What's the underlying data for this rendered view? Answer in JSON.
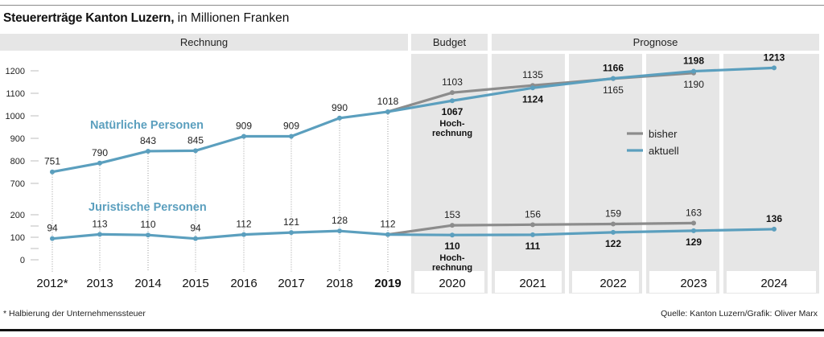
{
  "header": {
    "title_bold": "Steuererträge Kanton Luzern,",
    "title_rest": " in Millionen Franken"
  },
  "footer": {
    "footnote": "* Halbierung der Unternehmenssteuer",
    "source": "Quelle: Kanton Luzern/Grafik: Oliver Marx"
  },
  "colors": {
    "aktuell": "#5b9fbe",
    "bisher": "#8c8c8c",
    "panel": "#e6e6e6"
  },
  "chart_data": {
    "type": "line",
    "title": "Steuererträge Kanton Luzern, in Millionen Franken",
    "sections": [
      {
        "label": "Rechnung",
        "years": [
          "2012*",
          "2013",
          "2014",
          "2015",
          "2016",
          "2017",
          "2018",
          "2019"
        ]
      },
      {
        "label": "Budget",
        "years": [
          "2020"
        ]
      },
      {
        "label": "Prognose",
        "years": [
          "2021",
          "2022",
          "2023",
          "2024"
        ]
      }
    ],
    "categories": [
      "2012*",
      "2013",
      "2014",
      "2015",
      "2016",
      "2017",
      "2018",
      "2019",
      "2020",
      "2021",
      "2022",
      "2023",
      "2024"
    ],
    "bold_category": "2019",
    "legend": [
      {
        "name": "bisher",
        "color": "#8c8c8c"
      },
      {
        "name": "aktuell",
        "color": "#5b9fbe"
      }
    ],
    "legend_position": "right",
    "panels": [
      {
        "name": "Natürliche Personen",
        "yticks": [
          700,
          800,
          900,
          1000,
          1100,
          1200
        ],
        "ylim": [
          700,
          1200
        ],
        "series": [
          {
            "name": "aktuell",
            "values": [
              751,
              790,
              843,
              845,
              909,
              909,
              990,
              1018,
              1067,
              1124,
              1166,
              1198,
              1213
            ]
          },
          {
            "name": "bisher",
            "values": [
              null,
              null,
              null,
              null,
              null,
              null,
              null,
              1018,
              1103,
              1135,
              1165,
              1190,
              null
            ]
          }
        ],
        "annotations": [
          {
            "category": "2020",
            "text": [
              "Hoch-",
              "rechnung"
            ]
          }
        ]
      },
      {
        "name": "Juristische Personen",
        "yticks": [
          0,
          100,
          200
        ],
        "minor_yticks": [
          50,
          150
        ],
        "ylim": [
          0,
          200
        ],
        "series": [
          {
            "name": "aktuell",
            "values": [
              94,
              113,
              110,
              94,
              112,
              121,
              128,
              112,
              110,
              111,
              122,
              129,
              136
            ]
          },
          {
            "name": "bisher",
            "values": [
              null,
              null,
              null,
              null,
              null,
              null,
              null,
              112,
              153,
              156,
              159,
              163,
              null
            ]
          }
        ],
        "annotations": [
          {
            "category": "2020",
            "text": [
              "Hoch-",
              "rechnung"
            ]
          }
        ]
      }
    ]
  }
}
